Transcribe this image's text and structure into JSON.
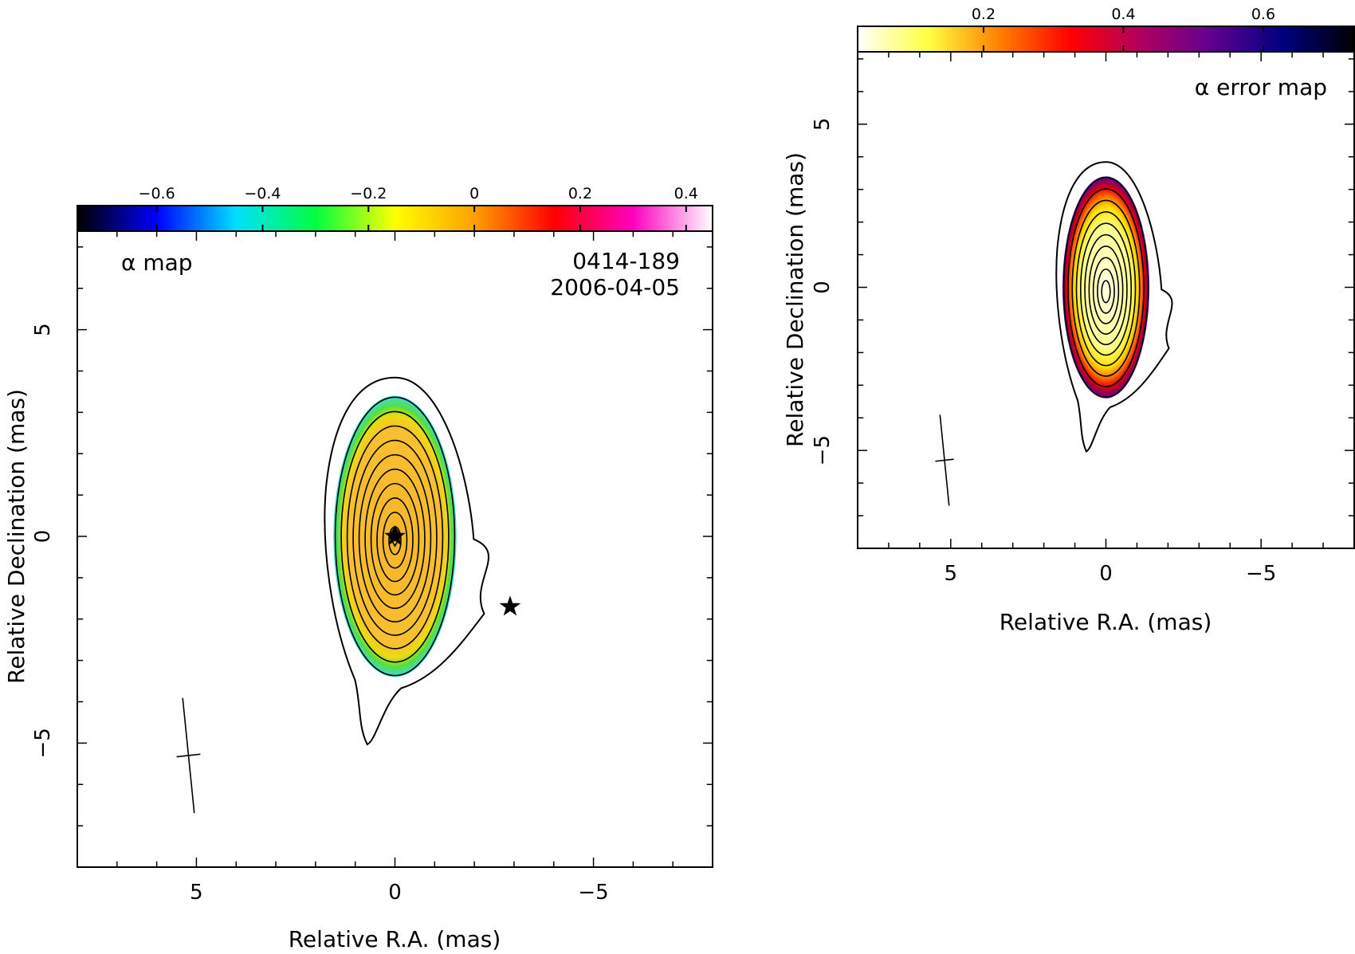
{
  "chart_data": [
    {
      "type": "heatmap",
      "panel_label": "α map",
      "source_name": "0414-189",
      "epoch": "2006-04-05",
      "xlabel": "Relative R.A. (mas)",
      "ylabel": "Relative Declination (mas)",
      "xlim": [
        8,
        -8
      ],
      "ylim": [
        -8,
        8
      ],
      "xticks": [
        5,
        0,
        -5
      ],
      "yticks": [
        5,
        0,
        -5
      ],
      "xtick_labels": [
        "5",
        "0",
        "−5"
      ],
      "ytick_labels": [
        "5",
        "0",
        "−5"
      ],
      "grid": false,
      "colorbar": {
        "position": "top",
        "range": [
          -0.75,
          0.45
        ],
        "ticks": [
          -0.6,
          -0.4,
          -0.2,
          0,
          0.2,
          0.4
        ],
        "tick_labels": [
          "−0.6",
          "−0.4",
          "−0.2",
          "0",
          "0.2",
          "0.4"
        ],
        "colormap": [
          "#000000",
          "#0000ff",
          "#00e0ff",
          "#00ff40",
          "#ffff00",
          "#ffa000",
          "#ff0000",
          "#ff00c0",
          "#ffffff"
        ]
      },
      "emission_region": {
        "center": [
          0.0,
          0.0
        ],
        "semi_axis_ra": 1.55,
        "semi_axis_dec": 3.4,
        "typical_value": 0.05
      },
      "contour_levels": 10,
      "core_marker": [
        0.0,
        0.0
      ],
      "star_markers": [
        [
          0.0,
          0.0
        ],
        [
          -2.9,
          -1.7
        ]
      ],
      "beam": {
        "center": [
          5.2,
          -5.3
        ],
        "major_mas": 2.8,
        "minor_mas": 0.6
      }
    },
    {
      "type": "heatmap",
      "panel_label": "α error map",
      "xlabel": "Relative R.A. (mas)",
      "ylabel": "Relative Declination (mas)",
      "xlim": [
        8,
        -8
      ],
      "ylim": [
        -8,
        8
      ],
      "xticks": [
        5,
        0,
        -5
      ],
      "yticks": [
        5,
        0,
        -5
      ],
      "xtick_labels": [
        "5",
        "0",
        "−5"
      ],
      "ytick_labels": [
        "5",
        "0",
        "−5"
      ],
      "grid": false,
      "colorbar": {
        "position": "top",
        "range": [
          0.02,
          0.73
        ],
        "ticks": [
          0.2,
          0.4,
          0.6
        ],
        "tick_labels": [
          "0.2",
          "0.4",
          "0.6"
        ],
        "colormap": [
          "#ffffff",
          "#ffff40",
          "#ff8000",
          "#ff0000",
          "#b00060",
          "#600090",
          "#000080",
          "#000000"
        ]
      },
      "emission_region": {
        "center": [
          0.0,
          0.0
        ],
        "semi_axis_ra": 1.4,
        "semi_axis_dec": 3.4,
        "typical_value": 0.1
      },
      "contour_levels": 10,
      "beam": {
        "center": [
          5.2,
          -5.3
        ],
        "major_mas": 2.8,
        "minor_mas": 0.6
      }
    }
  ]
}
